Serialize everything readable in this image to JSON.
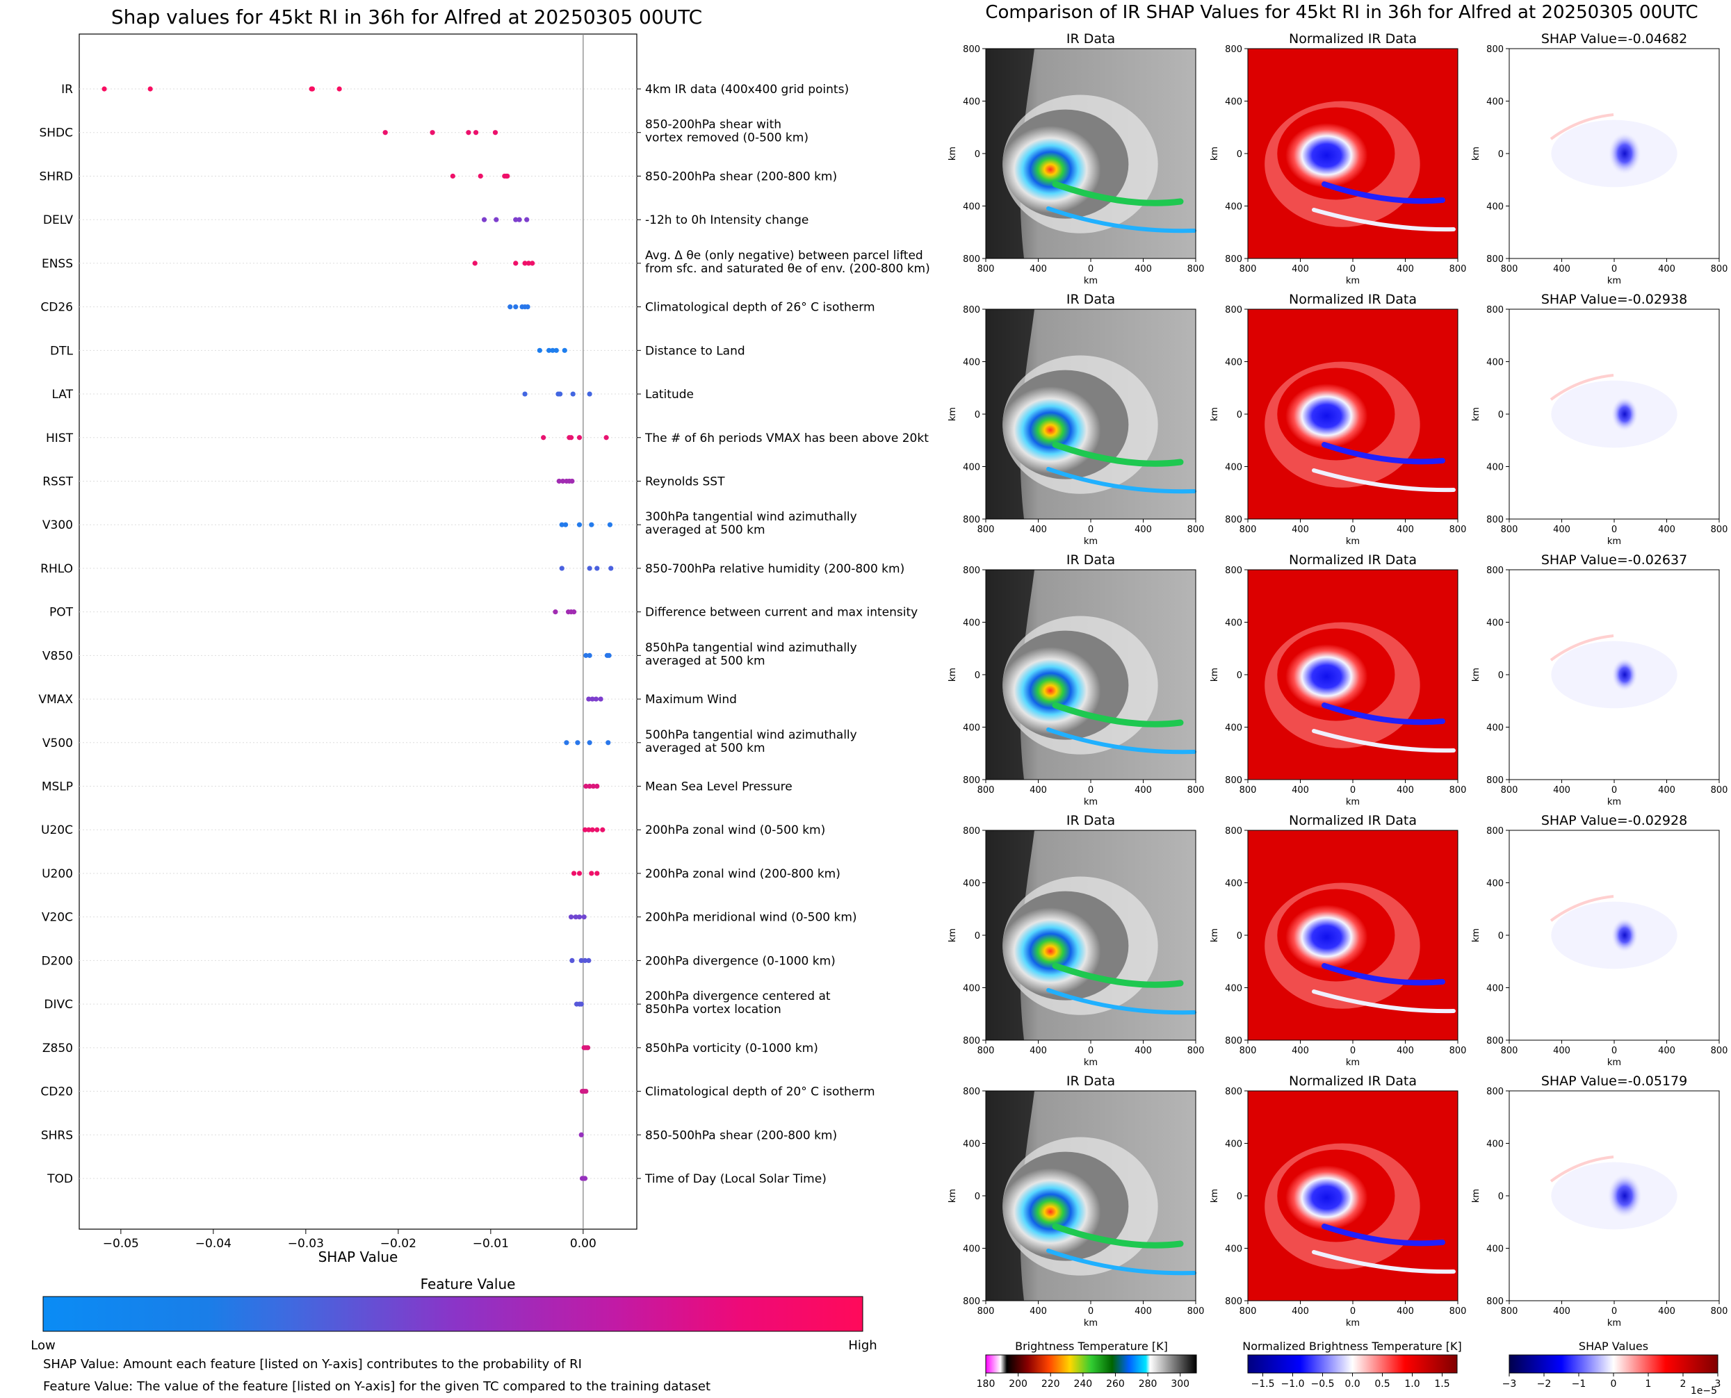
{
  "left_title": "Shap values for 45kt RI in 36h for Alfred at 20250305 00UTC",
  "right_title": "Comparison of IR SHAP Values for 45kt RI in 36h for Alfred at 20250305 00UTC",
  "colors": {
    "low": "#0a8cf5",
    "mid": "#8a35c8",
    "high": "#ff0a5a",
    "zero_line": "#888888"
  },
  "chart_data": [
    {
      "type": "scatter",
      "title": "Shap values for 45kt RI in 36h for Alfred at 20250305 00UTC",
      "xlabel": "SHAP Value",
      "ylabel": "",
      "xlim": [
        -0.0545,
        0.0058
      ],
      "xticks": [
        -0.05,
        -0.04,
        -0.03,
        -0.02,
        -0.01,
        0.0
      ],
      "xtick_labels": [
        "−0.05",
        "−0.04",
        "−0.03",
        "−0.02",
        "−0.01",
        "0.00"
      ],
      "grid": false,
      "colorbar": {
        "title": "Feature Value",
        "low_label": "Low",
        "high_label": "High"
      },
      "features": [
        {
          "name": "IR",
          "desc": [
            "4km IR data (400x400 grid points)"
          ],
          "fv": 0.97,
          "shap": [
            -0.05179,
            -0.04682,
            -0.02938,
            -0.02928,
            -0.02637
          ]
        },
        {
          "name": "SHDC",
          "desc": [
            "850-200hPa shear with",
            "vortex removed (0-500 km)"
          ],
          "fv": 0.92,
          "shap": [
            -0.0214,
            -0.0163,
            -0.0124,
            -0.0116,
            -0.0095
          ]
        },
        {
          "name": "SHRD",
          "desc": [
            "850-200hPa shear (200-800 km)"
          ],
          "fv": 0.93,
          "shap": [
            -0.0141,
            -0.0111,
            -0.0085,
            -0.0083,
            -0.0082
          ]
        },
        {
          "name": "DELV",
          "desc": [
            "-12h to 0h Intensity change"
          ],
          "fv": 0.45,
          "shap": [
            -0.0107,
            -0.0094,
            -0.0073,
            -0.0069,
            -0.0061
          ]
        },
        {
          "name": "ENSS",
          "desc": [
            "Avg. Δ θe (only negative) between parcel lifted",
            "from sfc. and saturated θe of env. (200-800 km)"
          ],
          "fv": 0.93,
          "shap": [
            -0.0117,
            -0.0073,
            -0.0063,
            -0.0059,
            -0.0055
          ]
        },
        {
          "name": "CD26",
          "desc": [
            "Climatological depth of 26° C isotherm"
          ],
          "fv": 0.12,
          "shap": [
            -0.0079,
            -0.0073,
            -0.0066,
            -0.0063,
            -0.006
          ]
        },
        {
          "name": "DTL",
          "desc": [
            "Distance to Land"
          ],
          "fv": 0.08,
          "shap": [
            -0.0047,
            -0.0037,
            -0.0033,
            -0.0029,
            -0.002
          ]
        },
        {
          "name": "LAT",
          "desc": [
            "Latitude"
          ],
          "fv": 0.22,
          "shap": [
            -0.0063,
            -0.0027,
            -0.0025,
            -0.0011,
            0.0007
          ]
        },
        {
          "name": "HIST",
          "desc": [
            "The # of 6h periods VMAX has been above 20kt"
          ],
          "fv": 0.9,
          "shap": [
            -0.0043,
            -0.0015,
            -0.0013,
            -0.0004,
            0.0025
          ]
        },
        {
          "name": "RSST",
          "desc": [
            "Reynolds SST"
          ],
          "fv": 0.6,
          "shap": [
            -0.0026,
            -0.0022,
            -0.0018,
            -0.0015,
            -0.0012
          ]
        },
        {
          "name": "V300",
          "desc": [
            "300hPa tangential wind azimuthally",
            "averaged at 500 km"
          ],
          "fv": 0.1,
          "shap": [
            -0.0023,
            -0.0019,
            -0.0004,
            0.0009,
            0.0029
          ]
        },
        {
          "name": "RHLO",
          "desc": [
            "850-700hPa relative humidity (200-800 km)"
          ],
          "fv": 0.25,
          "shap": [
            -0.0023,
            0.0007,
            0.0015,
            0.003
          ]
        },
        {
          "name": "POT",
          "desc": [
            "Difference between current and max intensity"
          ],
          "fv": 0.6,
          "shap": [
            -0.003,
            -0.0016,
            -0.0013,
            -0.001
          ]
        },
        {
          "name": "V850",
          "desc": [
            "850hPa tangential wind azimuthally",
            "averaged at 500 km"
          ],
          "fv": 0.12,
          "shap": [
            0.0003,
            0.0007,
            0.0026,
            0.0028
          ]
        },
        {
          "name": "VMAX",
          "desc": [
            "Maximum Wind"
          ],
          "fv": 0.45,
          "shap": [
            0.0006,
            0.001,
            0.0014,
            0.0019
          ]
        },
        {
          "name": "V500",
          "desc": [
            "500hPa tangential wind azimuthally",
            "averaged at 500 km"
          ],
          "fv": 0.12,
          "shap": [
            -0.0018,
            -0.0006,
            0.0007,
            0.0027
          ]
        },
        {
          "name": "MSLP",
          "desc": [
            "Mean Sea Level Pressure"
          ],
          "fv": 0.85,
          "shap": [
            0.0003,
            0.0007,
            0.0011,
            0.0015
          ]
        },
        {
          "name": "U20C",
          "desc": [
            "200hPa zonal wind (0-500 km)"
          ],
          "fv": 0.92,
          "shap": [
            0.0002,
            0.0006,
            0.001,
            0.0015,
            0.0021
          ]
        },
        {
          "name": "U200",
          "desc": [
            "200hPa zonal wind (200-800 km)"
          ],
          "fv": 0.93,
          "shap": [
            -0.001,
            -0.0004,
            0.0009,
            0.0015
          ]
        },
        {
          "name": "V20C",
          "desc": [
            "200hPa meridional wind (0-500 km)"
          ],
          "fv": 0.4,
          "shap": [
            -0.0013,
            -0.0008,
            -0.0004,
            0.0001
          ]
        },
        {
          "name": "D200",
          "desc": [
            "200hPa divergence (0-1000 km)"
          ],
          "fv": 0.3,
          "shap": [
            -0.0012,
            -0.0002,
            0.0002,
            0.0006
          ]
        },
        {
          "name": "DIVC",
          "desc": [
            "200hPa divergence centered at",
            "850hPa vortex location"
          ],
          "fv": 0.3,
          "shap": [
            -0.0007,
            -0.0004,
            -0.0002
          ]
        },
        {
          "name": "Z850",
          "desc": [
            "850hPa vorticity (0-1000 km)"
          ],
          "fv": 0.85,
          "shap": [
            0.0001,
            0.0003,
            0.0005
          ]
        },
        {
          "name": "CD20",
          "desc": [
            "Climatological depth of 20° C isotherm"
          ],
          "fv": 0.8,
          "shap": [
            -0.0001,
            0.0001,
            0.0003
          ]
        },
        {
          "name": "SHRS",
          "desc": [
            "850-500hPa shear (200-800 km)"
          ],
          "fv": 0.55,
          "shap": [
            -0.0002
          ]
        },
        {
          "name": "TOD",
          "desc": [
            "Time of Day (Local Solar Time)"
          ],
          "fv": 0.55,
          "shap": [
            -0.0001,
            0.0001,
            0.0002
          ]
        }
      ]
    },
    {
      "type": "heatmap",
      "title": "Comparison of IR SHAP Values for 45kt RI in 36h for Alfred at 20250305 00UTC",
      "panel_titles": [
        "IR Data",
        "Normalized IR Data"
      ],
      "shap_values": [
        "-0.04682",
        "-0.02938",
        "-0.02637",
        "-0.02928",
        "-0.05179"
      ],
      "shap_prefix": "SHAP Value=",
      "xlabel": "km",
      "ylabel": "km",
      "tick_labels": [
        "800",
        "400",
        "0",
        "400",
        "800"
      ],
      "colorbars": [
        {
          "title": "Brightness Temperature [K]",
          "ticks": [
            "180",
            "200",
            "220",
            "240",
            "260",
            "280",
            "300"
          ],
          "range": [
            180,
            310
          ]
        },
        {
          "title": "Normalized Brightness Temperature [K]",
          "ticks": [
            "−1.5",
            "−1.0",
            "−0.5",
            "0.0",
            "0.5",
            "1.0",
            "1.5"
          ],
          "range": [
            -1.75,
            1.75
          ]
        },
        {
          "title": "SHAP Values",
          "ticks": [
            "−3",
            "−2",
            "−1",
            "0",
            "1",
            "2",
            "3"
          ],
          "range": [
            -3,
            3
          ],
          "multiplier": "1e−5"
        }
      ]
    }
  ],
  "notes": [
    "SHAP Value: Amount each feature [listed on Y-axis] contributes to the probability of RI",
    "Feature Value: The value of the feature [listed on Y-axis] for the given TC compared to the training dataset"
  ]
}
